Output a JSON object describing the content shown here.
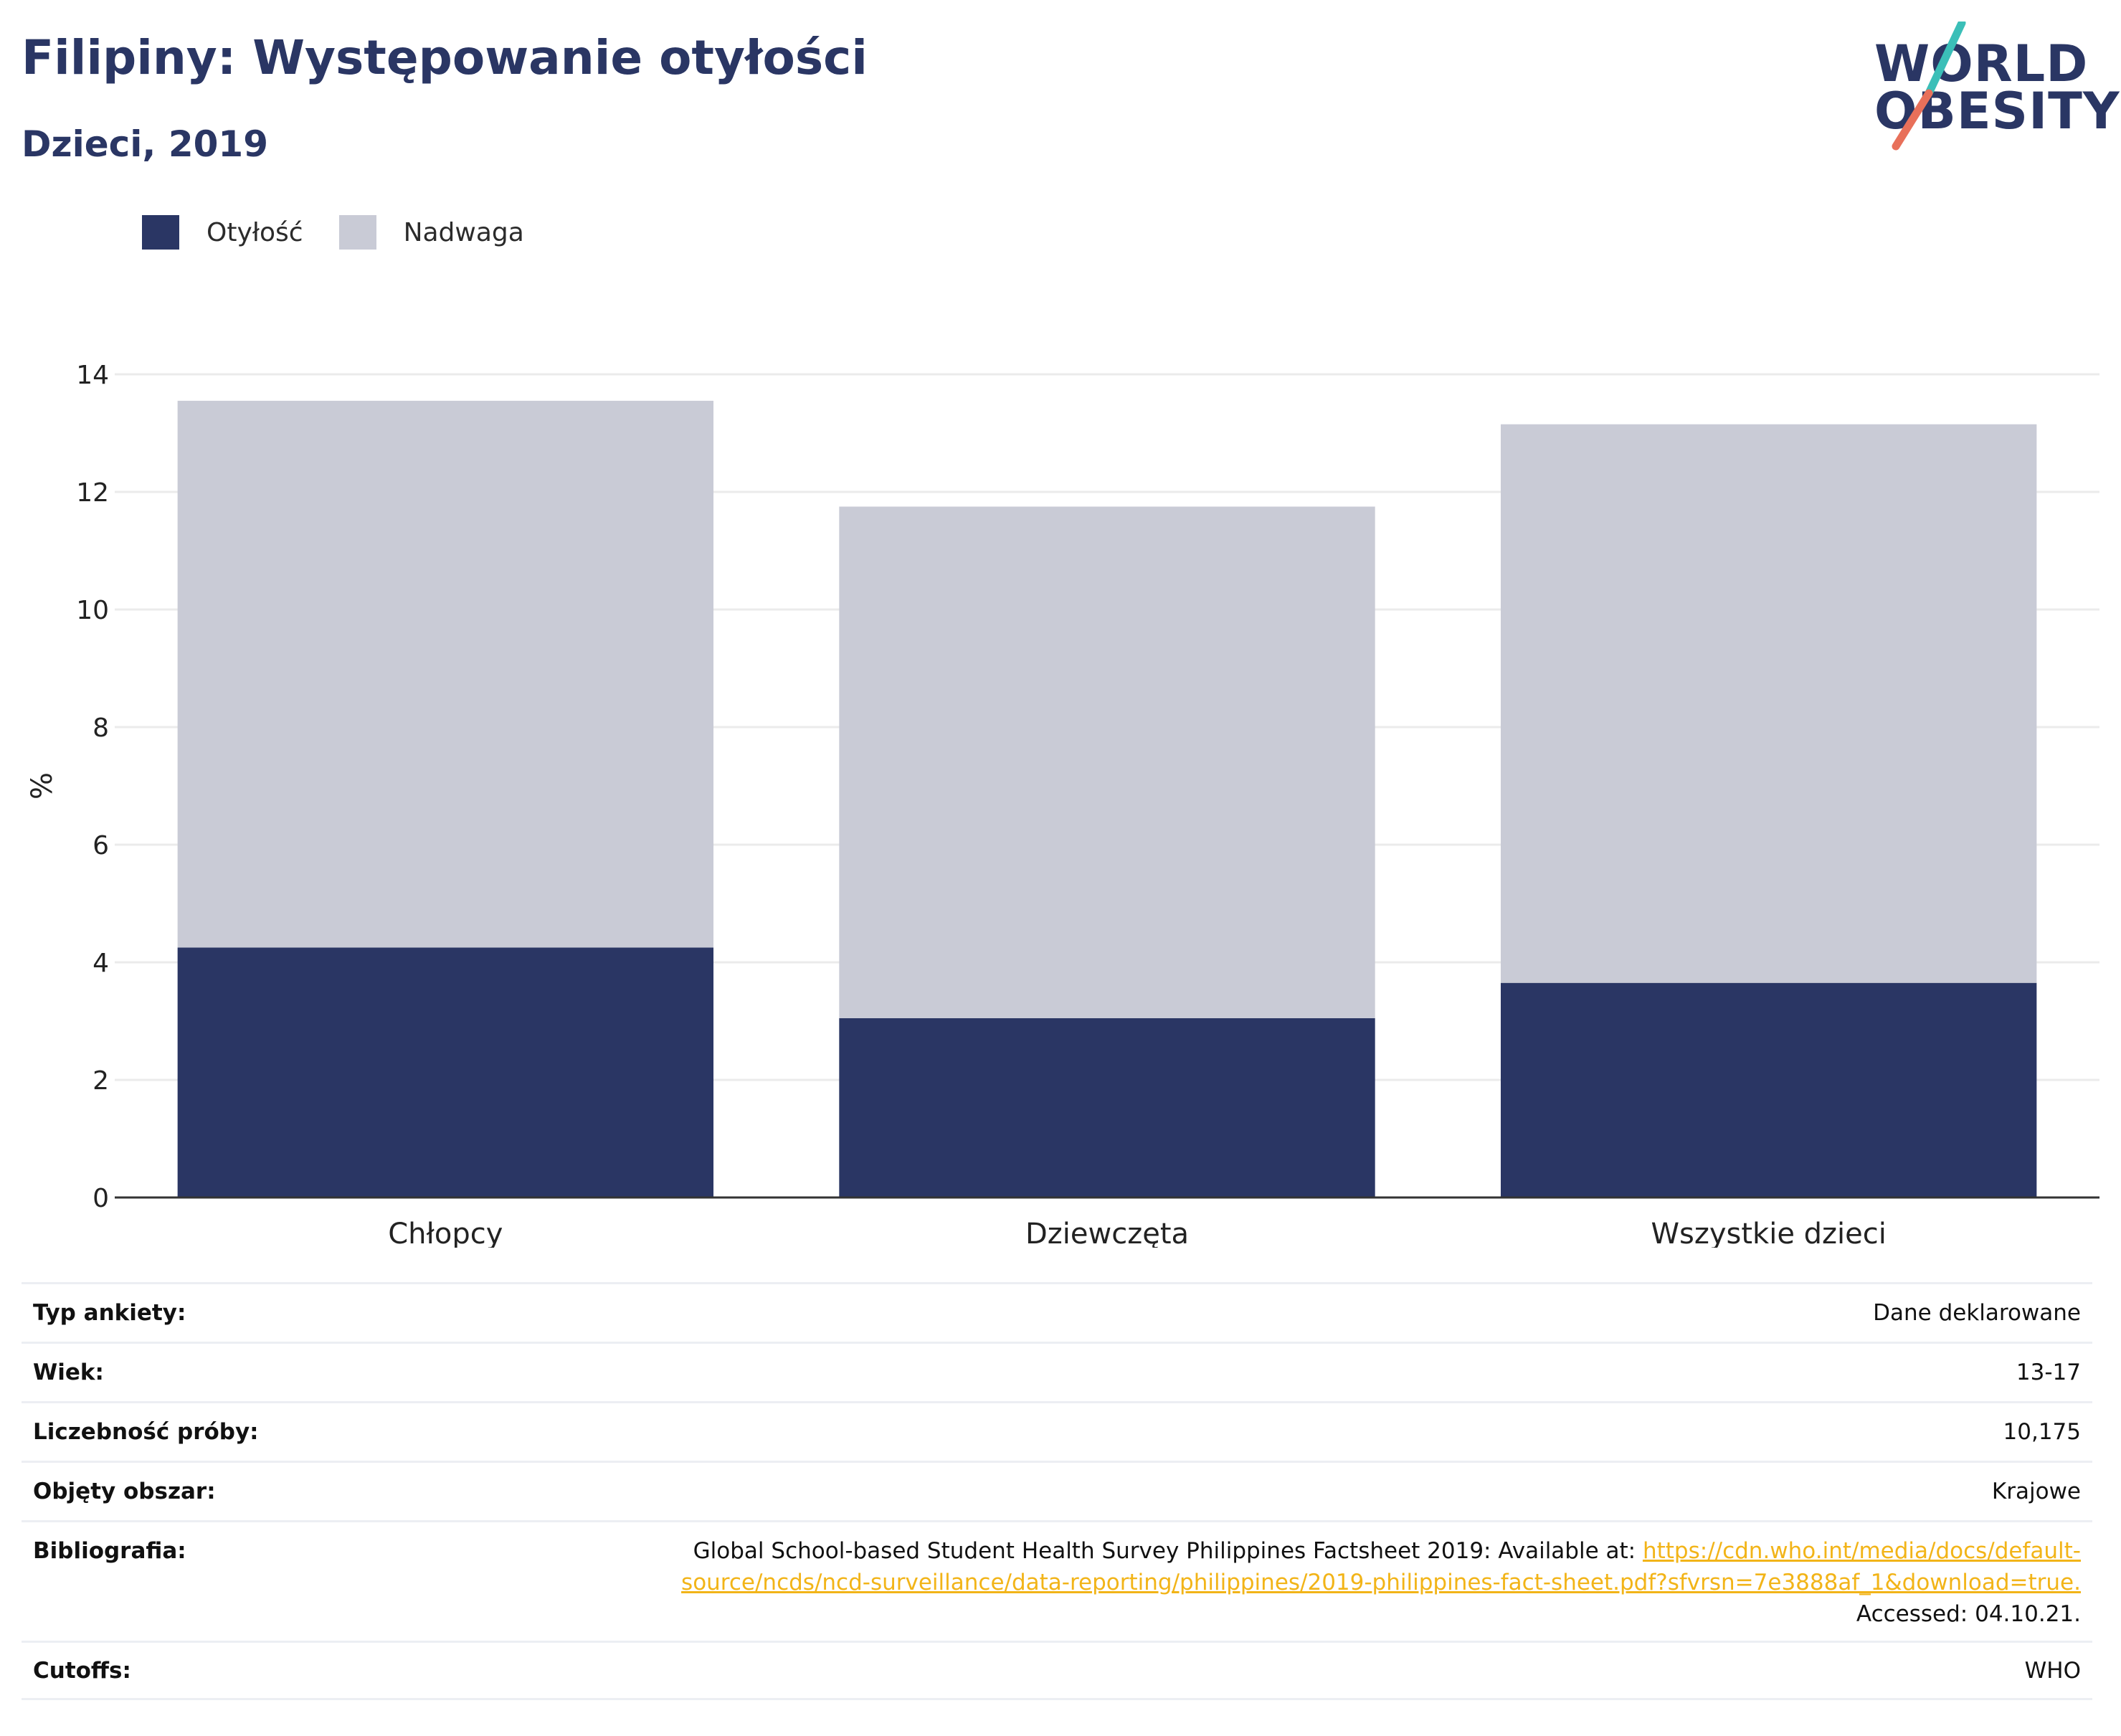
{
  "header": {
    "title": "Filipiny: Występowanie otyłości",
    "subtitle": "Dzieci, 2019"
  },
  "logo": {
    "line1": "WORLD",
    "line2": "OBESITY",
    "colors": {
      "text": "#2a3664",
      "slash_top": "#3bbfb8",
      "slash_bottom": "#e8705a"
    }
  },
  "legend": {
    "items": [
      {
        "label": "Otyłość",
        "color": "#2a3664"
      },
      {
        "label": "Nadwaga",
        "color": "#c9cbd6"
      }
    ]
  },
  "chart_data": {
    "type": "bar",
    "stacked": true,
    "categories": [
      "Chłopcy",
      "Dziewczęta",
      "Wszystkie dzieci"
    ],
    "series": [
      {
        "name": "Otyłość",
        "values": [
          4.25,
          3.05,
          3.65
        ],
        "color": "#2a3664"
      },
      {
        "name": "Nadwaga",
        "values": [
          9.3,
          8.7,
          9.5
        ],
        "color": "#c9cbd6"
      }
    ],
    "ylabel": "%",
    "ylim": [
      0,
      14
    ],
    "yticks": [
      0,
      2,
      4,
      6,
      8,
      10,
      12,
      14
    ],
    "grid": true,
    "legend_position": "top-left"
  },
  "meta": {
    "survey_type": {
      "label": "Typ ankiety:",
      "value": "Dane deklarowane"
    },
    "age": {
      "label": "Wiek:",
      "value": "13-17"
    },
    "sample": {
      "label": "Liczebność próby:",
      "value": "10,175"
    },
    "area": {
      "label": "Objęty obszar:",
      "value": "Krajowe"
    },
    "bibliography": {
      "label": "Bibliografia:",
      "text": "Global School-based Student Health Survey Philippines Factsheet 2019: Available at: ",
      "link_line1": "https://cdn.who.int/media/docs/default-",
      "link_line2": "source/ncds/ncd-surveillance/data-reporting/philippines/2019-philippines-fact-sheet.pdf?sfvrsn=7e3888af_1&download=true.",
      "accessed": "Accessed: 04.10.21."
    },
    "cutoffs": {
      "label": "Cutoffs:",
      "value": "WHO"
    }
  }
}
